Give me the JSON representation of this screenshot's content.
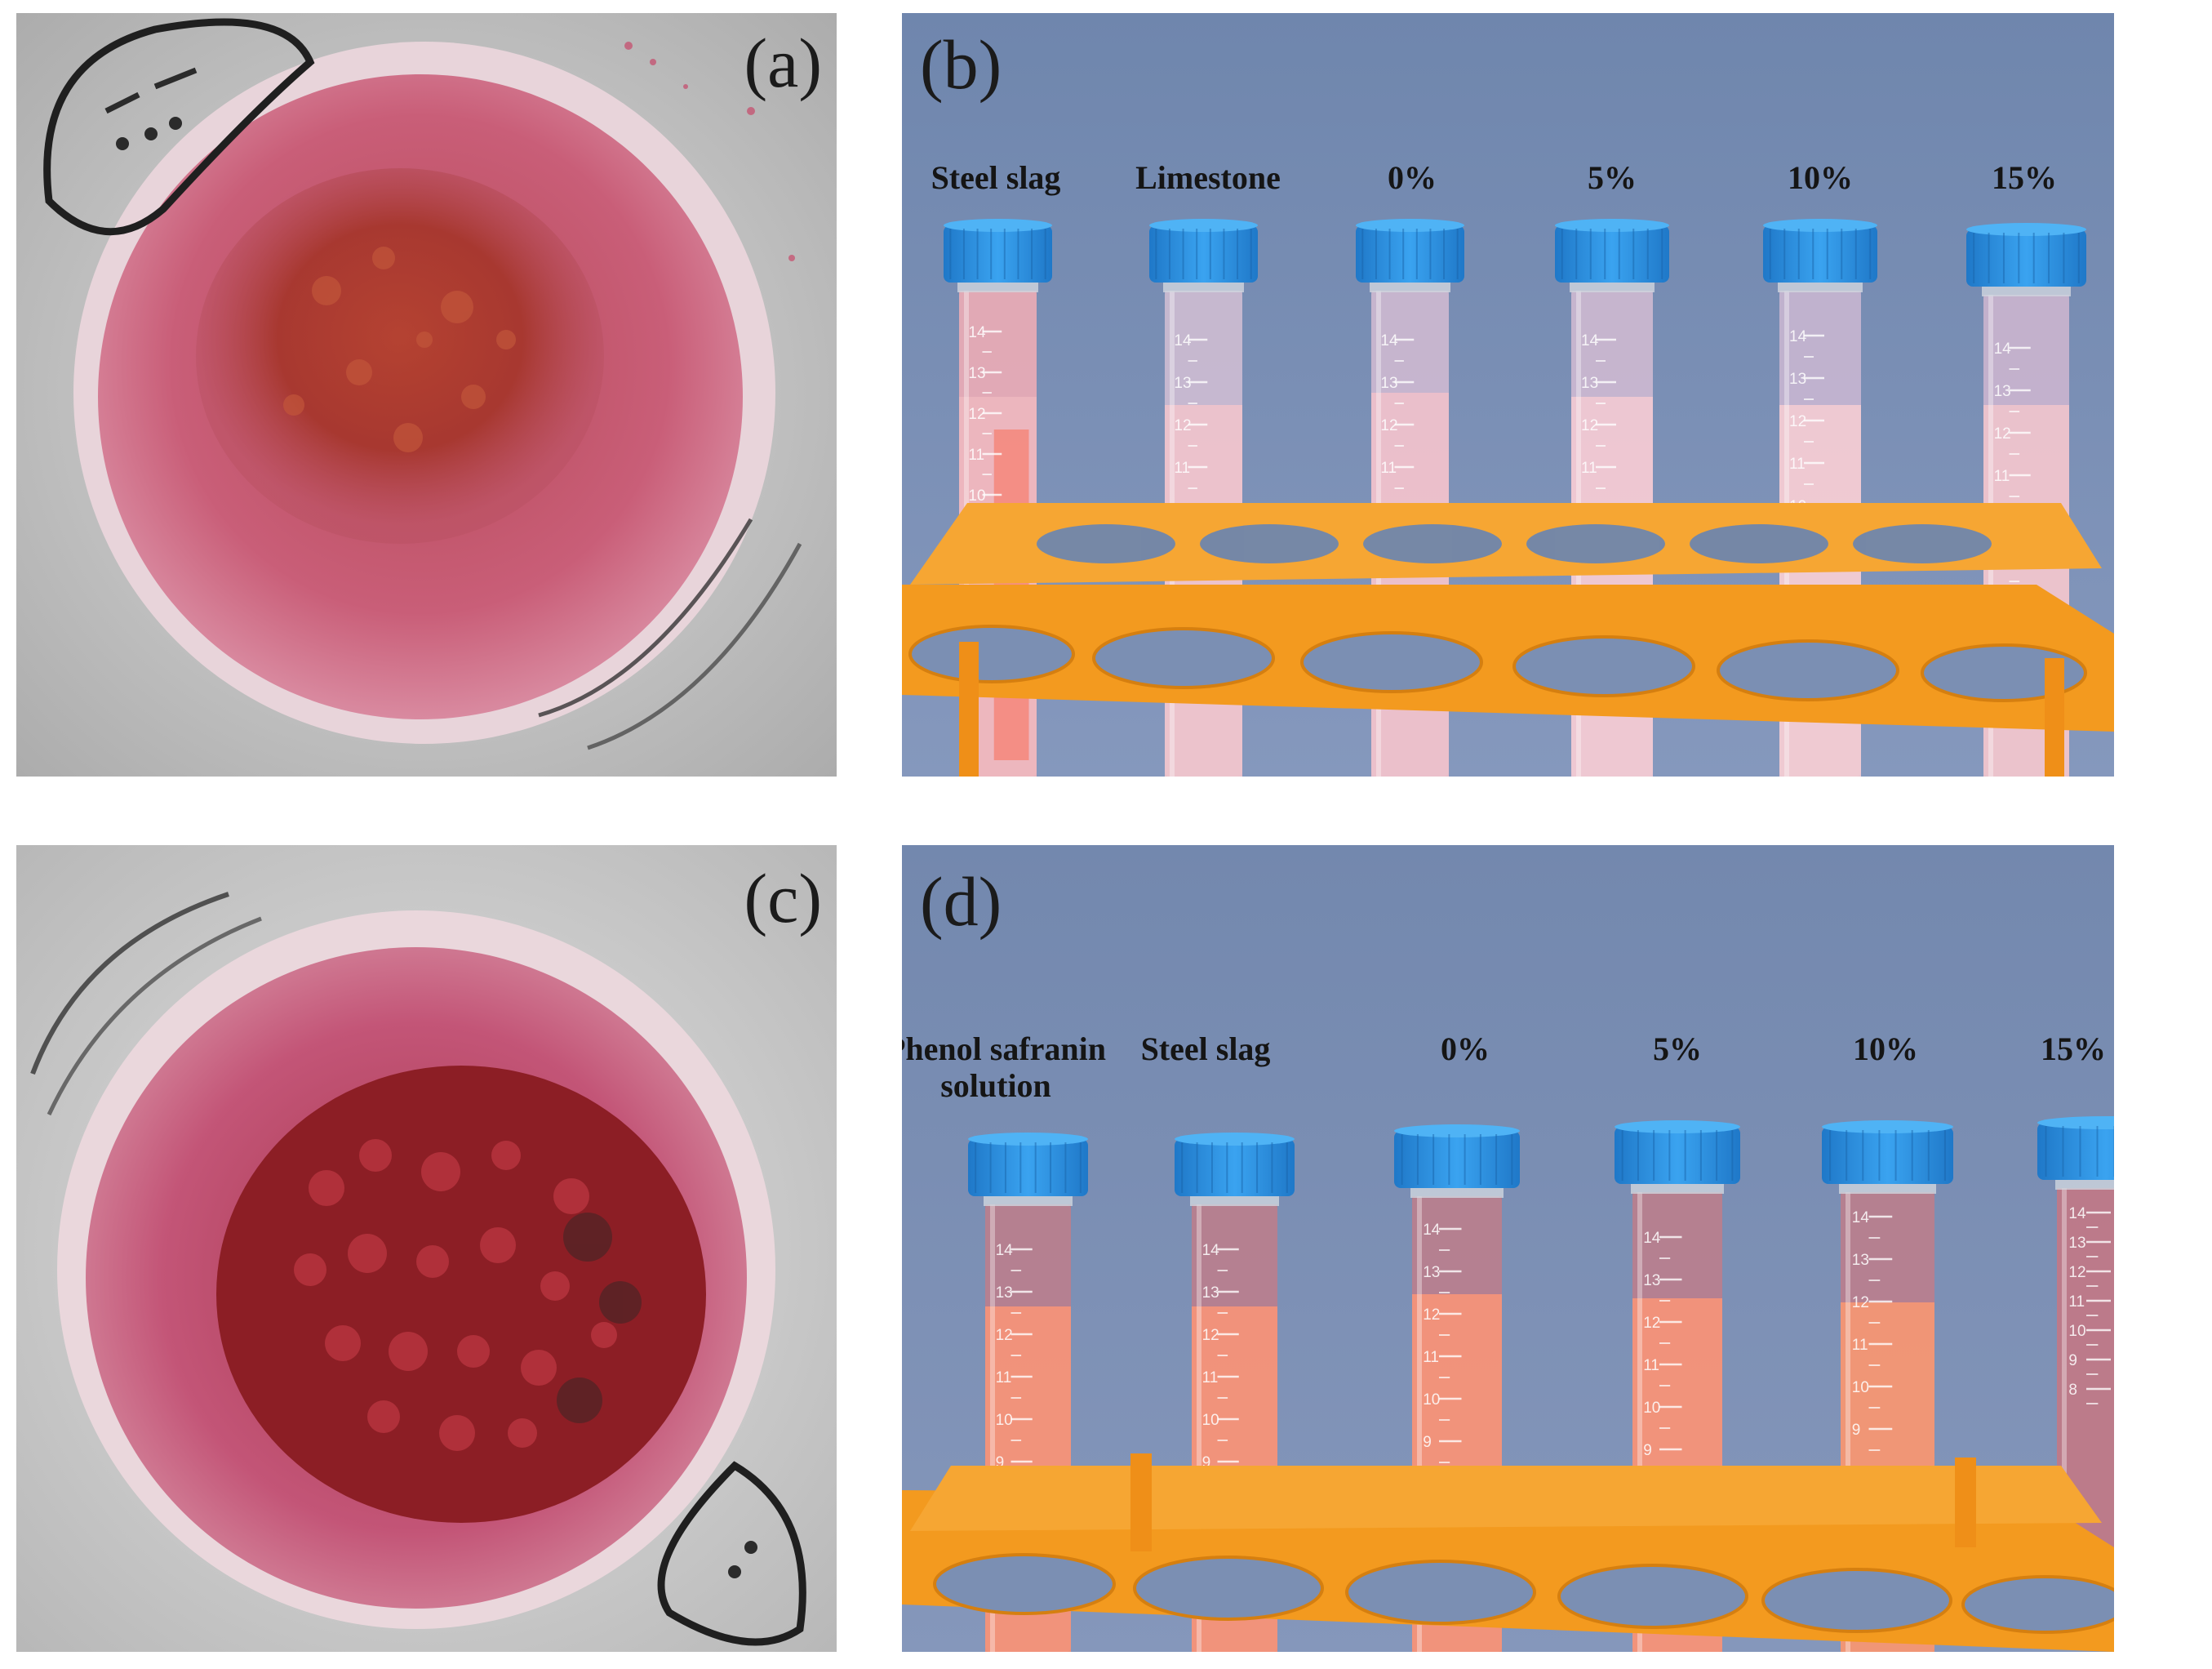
{
  "panels": {
    "a": {
      "label": "(a)"
    },
    "b": {
      "label": "(b)",
      "tubes": [
        "Steel slag",
        "Limestone",
        "0%",
        "5%",
        "10%",
        "15%"
      ]
    },
    "c": {
      "label": "(c)"
    },
    "d": {
      "label": "(d)",
      "tubes": [
        "Phenol safranin\nsolution",
        "Steel slag",
        "0%",
        "5%",
        "10%",
        "15%"
      ]
    }
  },
  "scale_numbers": [
    "14",
    "13",
    "12",
    "11",
    "10",
    "9",
    "8"
  ],
  "colors": {
    "rack": "#f39a1f",
    "cap": "#2a8fe0",
    "backdrop_b": "#6f86ad",
    "backdrop_d": "#7b8fb3",
    "dish_liquid": "#c55273",
    "sediment_a": "#a5352a",
    "sediment_c": "#8c1e25",
    "liquid_b_pale": "#f0c3cc",
    "liquid_b_salmon": "#f4897e",
    "liquid_d": "#f58f74",
    "tube_top_d": "#b57786"
  }
}
